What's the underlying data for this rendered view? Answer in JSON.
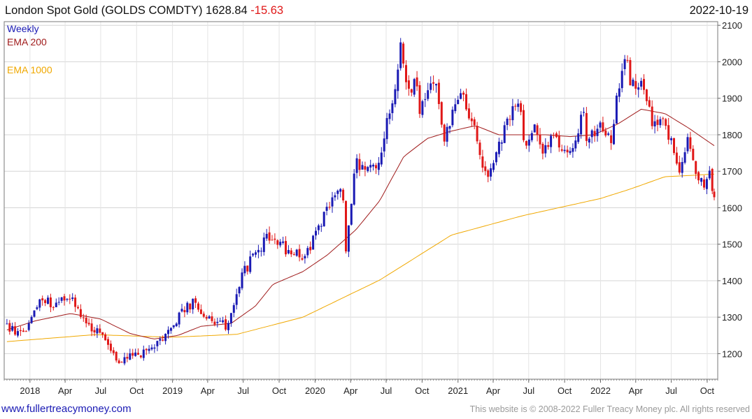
{
  "header": {
    "title": "London Spot Gold (GOLDS COMDTY)",
    "last_price": "1628.84",
    "change": "-15.63",
    "date": "2022-10-19"
  },
  "legend": {
    "weekly": "Weekly",
    "ema200": "EMA 200",
    "ema1000": "EMA 1000"
  },
  "footer": {
    "site": "www.fullertreacymoney.com",
    "copyright": "This website is © 2008-2022 Fuller Treacy Money plc. All rights reserved"
  },
  "colors": {
    "up": "#1a1ab4",
    "down": "#e01818",
    "ema200": "#a01c1c",
    "ema1000": "#f0a800",
    "change": "#e01818",
    "legend_weekly": "#1a1ab4",
    "legend_ema200": "#a01c1c",
    "legend_ema1000": "#f0a800"
  },
  "chart_data": {
    "type": "candlestick",
    "interval": "weekly",
    "ylim": [
      1130,
      2110
    ],
    "y_ticks": [
      1200,
      1300,
      1400,
      1500,
      1600,
      1700,
      1800,
      1900,
      2000,
      2100
    ],
    "x_range": [
      "2017-10-27",
      "2022-10-28"
    ],
    "x_ticks": [
      {
        "label": "2018",
        "date": "2018-01-01"
      },
      {
        "label": "Apr",
        "date": "2018-04-01"
      },
      {
        "label": "Jul",
        "date": "2018-07-01"
      },
      {
        "label": "Oct",
        "date": "2018-10-01"
      },
      {
        "label": "2019",
        "date": "2019-01-01"
      },
      {
        "label": "Apr",
        "date": "2019-04-01"
      },
      {
        "label": "Jul",
        "date": "2019-07-01"
      },
      {
        "label": "Oct",
        "date": "2019-10-01"
      },
      {
        "label": "2020",
        "date": "2020-01-01"
      },
      {
        "label": "Apr",
        "date": "2020-04-01"
      },
      {
        "label": "Jul",
        "date": "2020-07-01"
      },
      {
        "label": "Oct",
        "date": "2020-10-01"
      },
      {
        "label": "2021",
        "date": "2021-01-01"
      },
      {
        "label": "Apr",
        "date": "2021-04-01"
      },
      {
        "label": "Jul",
        "date": "2021-07-01"
      },
      {
        "label": "Oct",
        "date": "2021-10-01"
      },
      {
        "label": "2022",
        "date": "2022-01-01"
      },
      {
        "label": "Apr",
        "date": "2022-04-01"
      },
      {
        "label": "Jul",
        "date": "2022-07-01"
      },
      {
        "label": "Oct",
        "date": "2022-10-01"
      }
    ],
    "close_anchors": [
      [
        "2017-11-03",
        1275
      ],
      [
        "2017-12-12",
        1245
      ],
      [
        "2018-01-25",
        1355
      ],
      [
        "2018-02-15",
        1350
      ],
      [
        "2018-03-01",
        1318
      ],
      [
        "2018-04-11",
        1360
      ],
      [
        "2018-05-20",
        1295
      ],
      [
        "2018-06-30",
        1250
      ],
      [
        "2018-08-16",
        1175
      ],
      [
        "2018-09-25",
        1195
      ],
      [
        "2018-11-15",
        1210
      ],
      [
        "2018-12-31",
        1280
      ],
      [
        "2019-02-20",
        1340
      ],
      [
        "2019-04-23",
        1275
      ],
      [
        "2019-05-20",
        1280
      ],
      [
        "2019-06-25",
        1410
      ],
      [
        "2019-08-20",
        1505
      ],
      [
        "2019-09-05",
        1520
      ],
      [
        "2019-10-15",
        1490
      ],
      [
        "2019-11-30",
        1460
      ],
      [
        "2019-12-31",
        1520
      ],
      [
        "2020-02-24",
        1640
      ],
      [
        "2020-03-10",
        1670
      ],
      [
        "2020-03-19",
        1480
      ],
      [
        "2020-04-15",
        1720
      ],
      [
        "2020-06-10",
        1710
      ],
      [
        "2020-07-28",
        1960
      ],
      [
        "2020-08-07",
        2040
      ],
      [
        "2020-08-25",
        1920
      ],
      [
        "2020-09-15",
        1950
      ],
      [
        "2020-09-25",
        1860
      ],
      [
        "2020-11-05",
        1950
      ],
      [
        "2020-11-27",
        1780
      ],
      [
        "2021-01-05",
        1910
      ],
      [
        "2021-02-10",
        1840
      ],
      [
        "2021-03-08",
        1690
      ],
      [
        "2021-03-31",
        1710
      ],
      [
        "2021-05-25",
        1900
      ],
      [
        "2021-06-12",
        1870
      ],
      [
        "2021-06-20",
        1770
      ],
      [
        "2021-07-15",
        1820
      ],
      [
        "2021-08-09",
        1740
      ],
      [
        "2021-09-02",
        1820
      ],
      [
        "2021-09-29",
        1740
      ],
      [
        "2021-10-30",
        1790
      ],
      [
        "2021-11-15",
        1865
      ],
      [
        "2021-11-30",
        1780
      ],
      [
        "2021-12-31",
        1820
      ],
      [
        "2022-01-27",
        1790
      ],
      [
        "2022-03-08",
        2050
      ],
      [
        "2022-03-20",
        1930
      ],
      [
        "2022-04-18",
        1960
      ],
      [
        "2022-05-16",
        1810
      ],
      [
        "2022-06-10",
        1860
      ],
      [
        "2022-07-21",
        1700
      ],
      [
        "2022-08-15",
        1790
      ],
      [
        "2022-09-02",
        1710
      ],
      [
        "2022-09-26",
        1640
      ],
      [
        "2022-10-05",
        1710
      ],
      [
        "2022-10-19",
        1628.84
      ]
    ],
    "ema200_anchors": [
      [
        "2017-11-03",
        1265
      ],
      [
        "2018-01-15",
        1290
      ],
      [
        "2018-04-15",
        1310
      ],
      [
        "2018-07-01",
        1295
      ],
      [
        "2018-09-15",
        1255
      ],
      [
        "2018-11-15",
        1240
      ],
      [
        "2019-01-15",
        1250
      ],
      [
        "2019-03-15",
        1275
      ],
      [
        "2019-05-31",
        1283
      ],
      [
        "2019-08-01",
        1330
      ],
      [
        "2019-09-15",
        1390
      ],
      [
        "2019-12-01",
        1425
      ],
      [
        "2020-02-01",
        1470
      ],
      [
        "2020-04-15",
        1540
      ],
      [
        "2020-06-15",
        1620
      ],
      [
        "2020-08-15",
        1740
      ],
      [
        "2020-10-15",
        1790
      ],
      [
        "2020-12-15",
        1810
      ],
      [
        "2021-02-15",
        1825
      ],
      [
        "2021-04-15",
        1800
      ],
      [
        "2021-06-15",
        1800
      ],
      [
        "2021-08-15",
        1800
      ],
      [
        "2021-10-15",
        1795
      ],
      [
        "2021-12-15",
        1800
      ],
      [
        "2022-02-15",
        1830
      ],
      [
        "2022-04-15",
        1870
      ],
      [
        "2022-06-15",
        1858
      ],
      [
        "2022-08-15",
        1818
      ],
      [
        "2022-10-19",
        1770
      ]
    ],
    "ema1000_anchors": [
      [
        "2017-11-03",
        1233
      ],
      [
        "2018-06-15",
        1252
      ],
      [
        "2018-12-31",
        1245
      ],
      [
        "2019-06-15",
        1253
      ],
      [
        "2019-12-01",
        1300
      ],
      [
        "2020-06-15",
        1402
      ],
      [
        "2020-12-15",
        1525
      ],
      [
        "2021-06-15",
        1578
      ],
      [
        "2021-12-31",
        1625
      ],
      [
        "2022-03-15",
        1650
      ],
      [
        "2022-06-15",
        1685
      ],
      [
        "2022-10-19",
        1692
      ]
    ]
  }
}
